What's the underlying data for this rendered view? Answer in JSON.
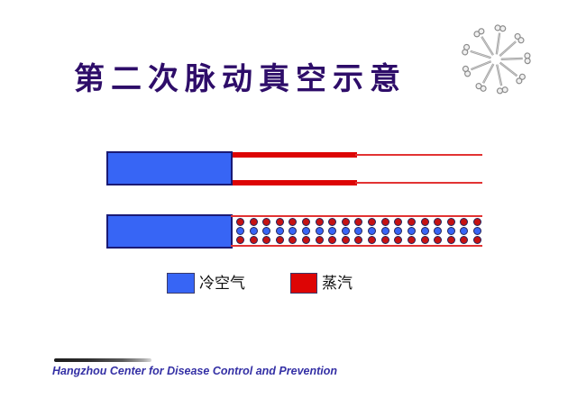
{
  "slide": {
    "title": "第二次脉动真空示意",
    "footer_text": "Hangzhou Center for Disease Control and Prevention"
  },
  "colors": {
    "title": "#2E0D69",
    "cold_air": "#3765F5",
    "steam": "#DD0505",
    "steam_line": "#E23333",
    "steam_dot": "#C51212",
    "dot_outline": "#24245C",
    "footer_text": "#3430A5"
  },
  "decor": {
    "corner_icon": "scissors-starburst-icon"
  },
  "diagram": {
    "tube2_dot_rows": [
      {
        "type": "steam",
        "count": 19
      },
      {
        "type": "cold-air",
        "count": 19
      },
      {
        "type": "steam",
        "count": 19
      }
    ]
  },
  "legend": {
    "items": [
      {
        "label": "冷空气",
        "color": "#3765F5"
      },
      {
        "label": "蒸汽",
        "color": "#DD0505"
      }
    ]
  }
}
